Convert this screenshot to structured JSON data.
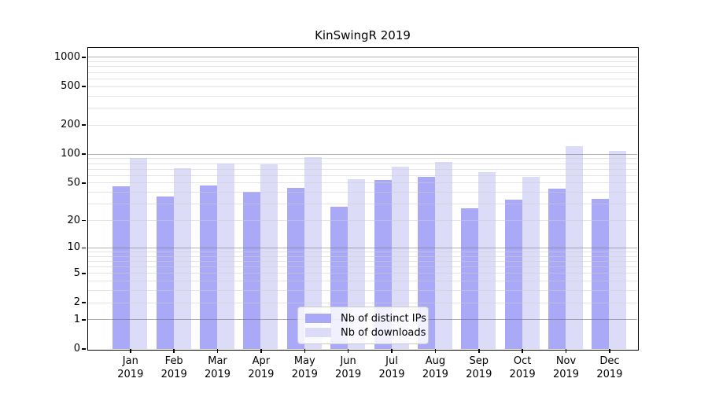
{
  "chart_data": {
    "type": "bar",
    "title": "KinSwingR 2019",
    "categories": [
      "Jan",
      "Feb",
      "Mar",
      "Apr",
      "May",
      "Jun",
      "Jul",
      "Aug",
      "Sep",
      "Oct",
      "Nov",
      "Dec"
    ],
    "category_year": "2019",
    "series": [
      {
        "name": "Nb of distinct IPs",
        "key": "ips",
        "color": "#a9a9f7",
        "values": [
          46,
          36,
          47,
          40,
          44,
          28,
          53,
          58,
          27,
          33,
          43,
          34
        ]
      },
      {
        "name": "Nb of downloads",
        "key": "downloads",
        "color": "#dcdcf8",
        "values": [
          91,
          71,
          79,
          78,
          93,
          54,
          73,
          82,
          65,
          58,
          120,
          108
        ]
      }
    ],
    "yscale": "log10(1+v)",
    "ylim_top_value": 1200,
    "ytick_labels": [
      0,
      1,
      2,
      5,
      10,
      20,
      50,
      100,
      200,
      500,
      1000
    ],
    "major_gridlines": [
      1,
      10,
      100,
      1000
    ],
    "minor_gridlines": [
      2,
      3,
      4,
      5,
      6,
      7,
      8,
      9,
      20,
      30,
      40,
      50,
      60,
      70,
      80,
      90,
      200,
      300,
      400,
      500,
      600,
      700,
      800,
      900
    ],
    "grid": true,
    "legend_position": "lower center",
    "colors": {
      "bar_ips": "#a9a9f7",
      "bar_downloads": "#dcdcf8",
      "grid_major": "#b6b6b6",
      "grid_minor": "#e5e5e5",
      "axis": "#000000"
    }
  }
}
